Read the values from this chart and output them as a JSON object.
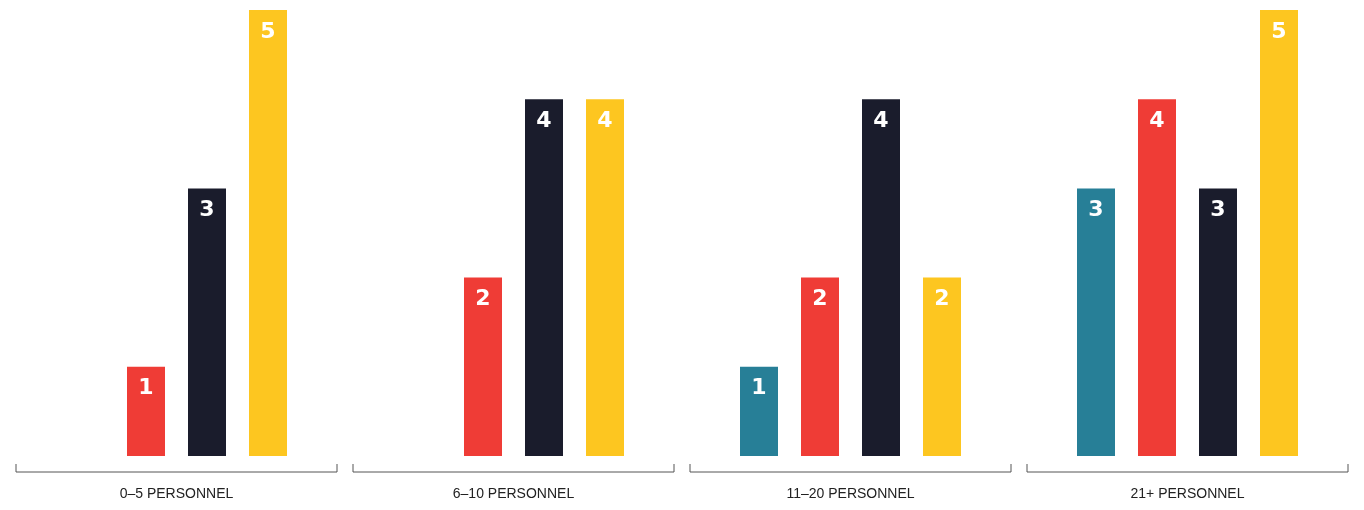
{
  "chart_data": {
    "type": "bar",
    "categories": [
      "0–5 PERSONNEL",
      "6–10 PERSONNEL",
      "11–20 PERSONNEL",
      "21+ PERSONNEL"
    ],
    "series": [
      {
        "color": "#277f97",
        "values": [
          null,
          null,
          1,
          3
        ]
      },
      {
        "color": "#ef3c36",
        "values": [
          1,
          2,
          2,
          4
        ]
      },
      {
        "color": "#1a1c2c",
        "values": [
          3,
          4,
          4,
          3
        ]
      },
      {
        "color": "#fdc620",
        "values": [
          5,
          4,
          2,
          5
        ]
      }
    ],
    "data_labels": true
  }
}
